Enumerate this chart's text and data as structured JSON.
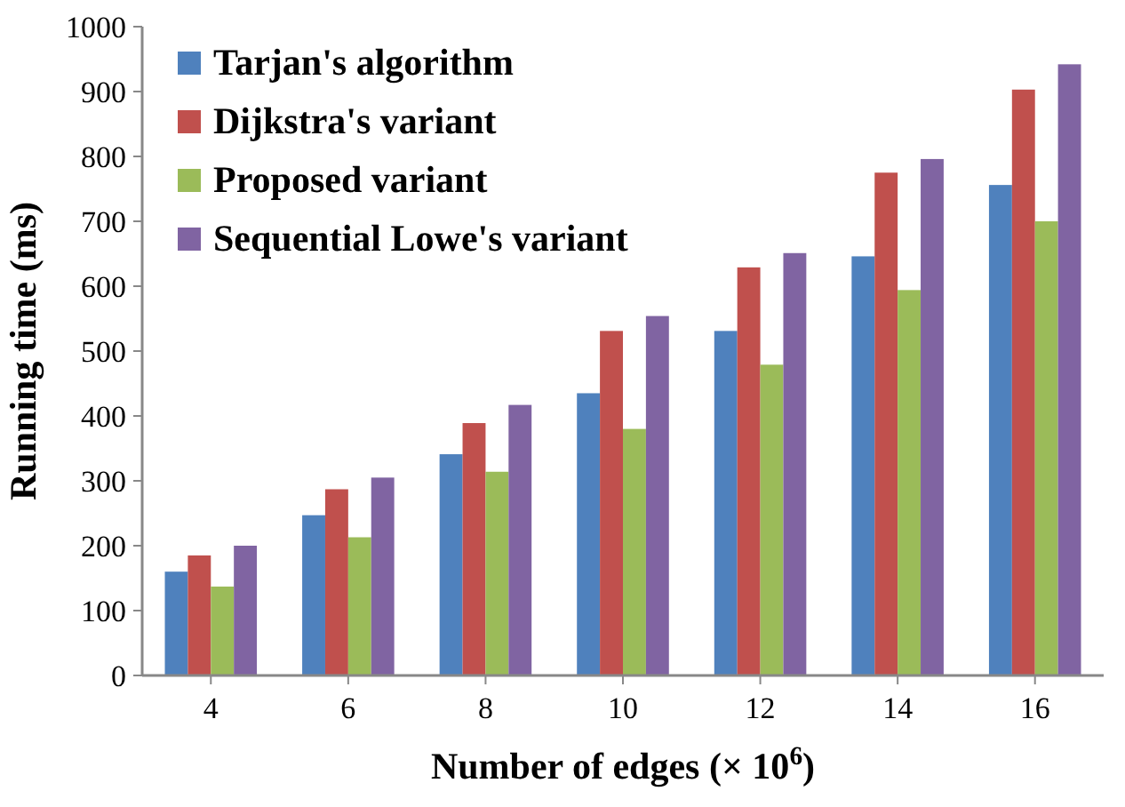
{
  "chart_data": {
    "type": "bar",
    "xlabel": "Number of edges  (× 10$^{6}$)",
    "ylabel": "Running time  (ms)",
    "categories": [
      "4",
      "6",
      "8",
      "10",
      "12",
      "14",
      "16"
    ],
    "series": [
      {
        "name": "Tarjan's algorithm",
        "color": "#4f81bd",
        "values": [
          160,
          247,
          341,
          435,
          531,
          646,
          756
        ]
      },
      {
        "name": "Dijkstra's variant",
        "color": "#c0504d",
        "values": [
          185,
          287,
          389,
          531,
          629,
          775,
          903
        ]
      },
      {
        "name": "Proposed variant",
        "color": "#9bbb59",
        "values": [
          137,
          213,
          314,
          380,
          479,
          594,
          700
        ]
      },
      {
        "name": "Sequential Lowe's variant",
        "color": "#8064a2",
        "values": [
          200,
          305,
          417,
          554,
          651,
          796,
          942
        ]
      }
    ],
    "ylim": [
      0,
      1000
    ],
    "yticks": [
      0,
      100,
      200,
      300,
      400,
      500,
      600,
      700,
      800,
      900,
      1000
    ],
    "grid": false,
    "legend": "top left"
  }
}
